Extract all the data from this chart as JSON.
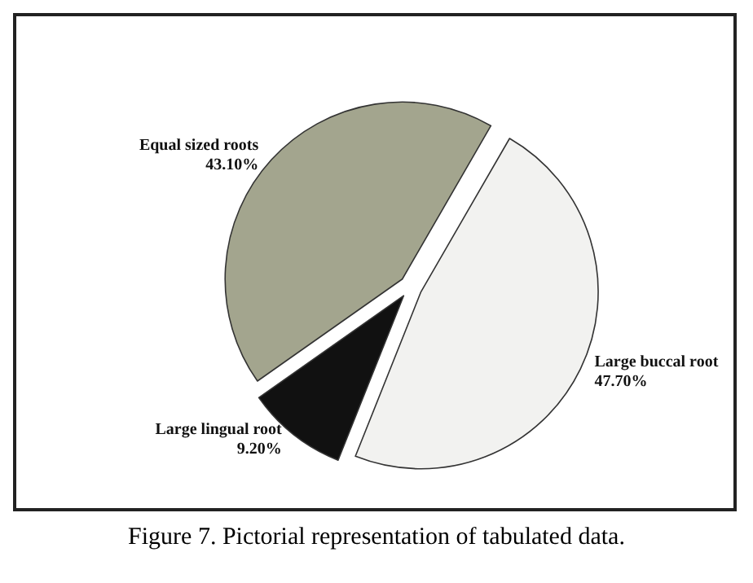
{
  "chart_data": {
    "type": "pie",
    "categories": [
      "Large buccal root",
      "Large lingual root",
      "Equal sized roots"
    ],
    "values": [
      47.7,
      9.2,
      43.1
    ],
    "value_labels": [
      "47.70%",
      "9.20%",
      "43.10%"
    ],
    "colors": [
      "#f2f2f0",
      "#111111",
      "#a3a58e"
    ],
    "annotations": [
      "Figure 7. Pictorial representation of tabulated data."
    ]
  }
}
